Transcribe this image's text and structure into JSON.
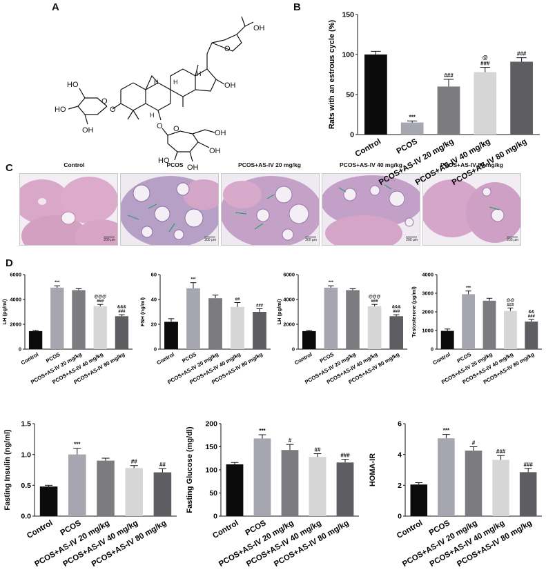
{
  "panels": {
    "A": "A",
    "B": "B",
    "C": "C",
    "D": "D"
  },
  "structure_labels": {
    "oh_side_top": "OH",
    "oh_side_bottom": "OH",
    "h_labels": [
      "H",
      "H",
      "H",
      "H"
    ],
    "xylose_ho": "HO",
    "xylose_ho2": "HO",
    "xylose_oh": "OH",
    "ring_o": "O",
    "glucose_ho": "HO",
    "glucose_oh_mid": "OH",
    "glucose_oh_right": "OH",
    "glucose_oh_top": "OH",
    "c16_oh": "OH",
    "c6_o": "O",
    "c3_o": "O",
    "glu_ring_o": "O",
    "furan_o": "O"
  },
  "colors": {
    "control": "#0b0b0b",
    "pcos": "#a6a6b0",
    "as20": "#7c7c80",
    "as40": "#d6d6d6",
    "as80": "#5e5e62"
  },
  "histology": {
    "titles": [
      "Control",
      "PCOS",
      "PCOS+AS-IV 20 mg/kg",
      "PCOS+AS-IV 40 mg/kg",
      "PCOS+AS-IV 80 mg/kg"
    ],
    "scale_label": "200 μm"
  },
  "chart_data": [
    {
      "id": "estrous",
      "type": "bar",
      "categories": [
        "Control",
        "PCOS",
        "PCOS+AS-IV 20 mg/kg",
        "PCOS+AS-IV 40 mg/kg",
        "PCOS+AS-IV 80 mg/kg"
      ],
      "values": [
        100,
        15,
        60,
        78,
        91
      ],
      "errors": [
        4,
        2,
        9,
        6,
        5
      ],
      "annotations": [
        "",
        "***",
        "###",
        "@\n###",
        "###"
      ],
      "ylabel": "Rats with an estrous cycle (%)",
      "ylim": [
        0,
        150
      ],
      "yticks": [
        0,
        50,
        100,
        150
      ]
    },
    {
      "id": "lh1",
      "type": "bar",
      "categories": [
        "Control",
        "PCOS",
        "PCOS+AS-IV 20 mg/kg",
        "PCOS+AS-IV 40 mg/kg",
        "PCOS+AS-IV 80 mg/kg"
      ],
      "values": [
        1450,
        4950,
        4750,
        3450,
        2650
      ],
      "errors": [
        60,
        150,
        120,
        150,
        120
      ],
      "annotations": [
        "",
        "***",
        "",
        "@@@\n###",
        "&&&\n###"
      ],
      "ylabel": "LH (pg/ml)",
      "ylim": [
        0,
        6000
      ],
      "yticks": [
        0,
        2000,
        4000,
        6000
      ]
    },
    {
      "id": "fsh",
      "type": "bar",
      "categories": [
        "Control",
        "PCOS",
        "PCOS+AS-IV 20 mg/kg",
        "PCOS+AS-IV 40 mg/kg",
        "PCOS+AS-IV 80 mg/kg"
      ],
      "values": [
        22,
        49,
        41,
        34,
        30
      ],
      "errors": [
        2.5,
        4.5,
        2.5,
        3.5,
        2.5
      ],
      "annotations": [
        "",
        "***",
        "",
        "##",
        "###"
      ],
      "ylabel": "FSH (ng/ml)",
      "ylim": [
        0,
        60
      ],
      "yticks": [
        0,
        20,
        40,
        60
      ]
    },
    {
      "id": "lh2",
      "type": "bar",
      "categories": [
        "Control",
        "PCOS",
        "PCOS+AS-IV 20 mg/kg",
        "PCOS+AS-IV 40 mg/kg",
        "PCOS+AS-IV 80 mg/kg"
      ],
      "values": [
        1450,
        4950,
        4750,
        3450,
        2650
      ],
      "errors": [
        60,
        150,
        120,
        150,
        120
      ],
      "annotations": [
        "",
        "***",
        "",
        "@@@\n###",
        "&&&\n###"
      ],
      "ylabel": "LH (pg/ml)",
      "ylim": [
        0,
        6000
      ],
      "yticks": [
        0,
        2000,
        4000,
        6000
      ]
    },
    {
      "id": "testosterone",
      "type": "bar",
      "categories": [
        "Control",
        "PCOS",
        "PCOS+AS-IV 20 mg/kg",
        "PCOS+AS-IV 40 mg/kg",
        "PCOS+AS-IV 80 mg/kg"
      ],
      "values": [
        980,
        2950,
        2600,
        2050,
        1480
      ],
      "errors": [
        100,
        170,
        130,
        160,
        110
      ],
      "annotations": [
        "",
        "***",
        "",
        "@@\n###",
        "&&\n###"
      ],
      "ylabel": "Testosterone (pg/ml)",
      "ylim": [
        0,
        4000
      ],
      "yticks": [
        0,
        1000,
        2000,
        3000,
        4000
      ]
    },
    {
      "id": "insulin",
      "type": "bar",
      "categories": [
        "Control",
        "PCOS",
        "PCOS+AS-IV 20 mg/kg",
        "PCOS+AS-IV 40 mg/kg",
        "PCOS+AS-IV 80 mg/kg"
      ],
      "values": [
        0.48,
        1.0,
        0.9,
        0.78,
        0.71
      ],
      "errors": [
        0.02,
        0.1,
        0.04,
        0.04,
        0.06
      ],
      "annotations": [
        "",
        "***",
        "",
        "##",
        "##"
      ],
      "ylabel": "Fasting Insulin (ng/ml)",
      "ylim": [
        0,
        1.5
      ],
      "yticks": [
        0.0,
        0.5,
        1.0,
        1.5
      ],
      "tick_decimals": 1
    },
    {
      "id": "glucose",
      "type": "bar",
      "categories": [
        "Control",
        "PCOS",
        "PCOS+AS-IV 20 mg/kg",
        "PCOS+AS-IV 40 mg/kg",
        "PCOS+AS-IV 80 mg/kg"
      ],
      "values": [
        112,
        168,
        143,
        128,
        116
      ],
      "errors": [
        4,
        8,
        12,
        7,
        7
      ],
      "annotations": [
        "",
        "***",
        "#",
        "##",
        "###"
      ],
      "ylabel": "Fasting Glucose (mg/dl)",
      "ylim": [
        0,
        200
      ],
      "yticks": [
        0,
        50,
        100,
        150,
        200
      ]
    },
    {
      "id": "homa",
      "type": "bar",
      "categories": [
        "Control",
        "PCOS",
        "PCOS+AS-IV 20 mg/kg",
        "PCOS+AS-IV 40 mg/kg",
        "PCOS+AS-IV 80 mg/kg"
      ],
      "values": [
        2.05,
        5.05,
        4.25,
        3.65,
        2.85
      ],
      "errors": [
        0.12,
        0.25,
        0.25,
        0.28,
        0.25
      ],
      "annotations": [
        "",
        "***",
        "#",
        "###",
        "###"
      ],
      "ylabel": "HOMA-IR",
      "ylim": [
        0,
        6
      ],
      "yticks": [
        0,
        2,
        4,
        6
      ]
    }
  ]
}
